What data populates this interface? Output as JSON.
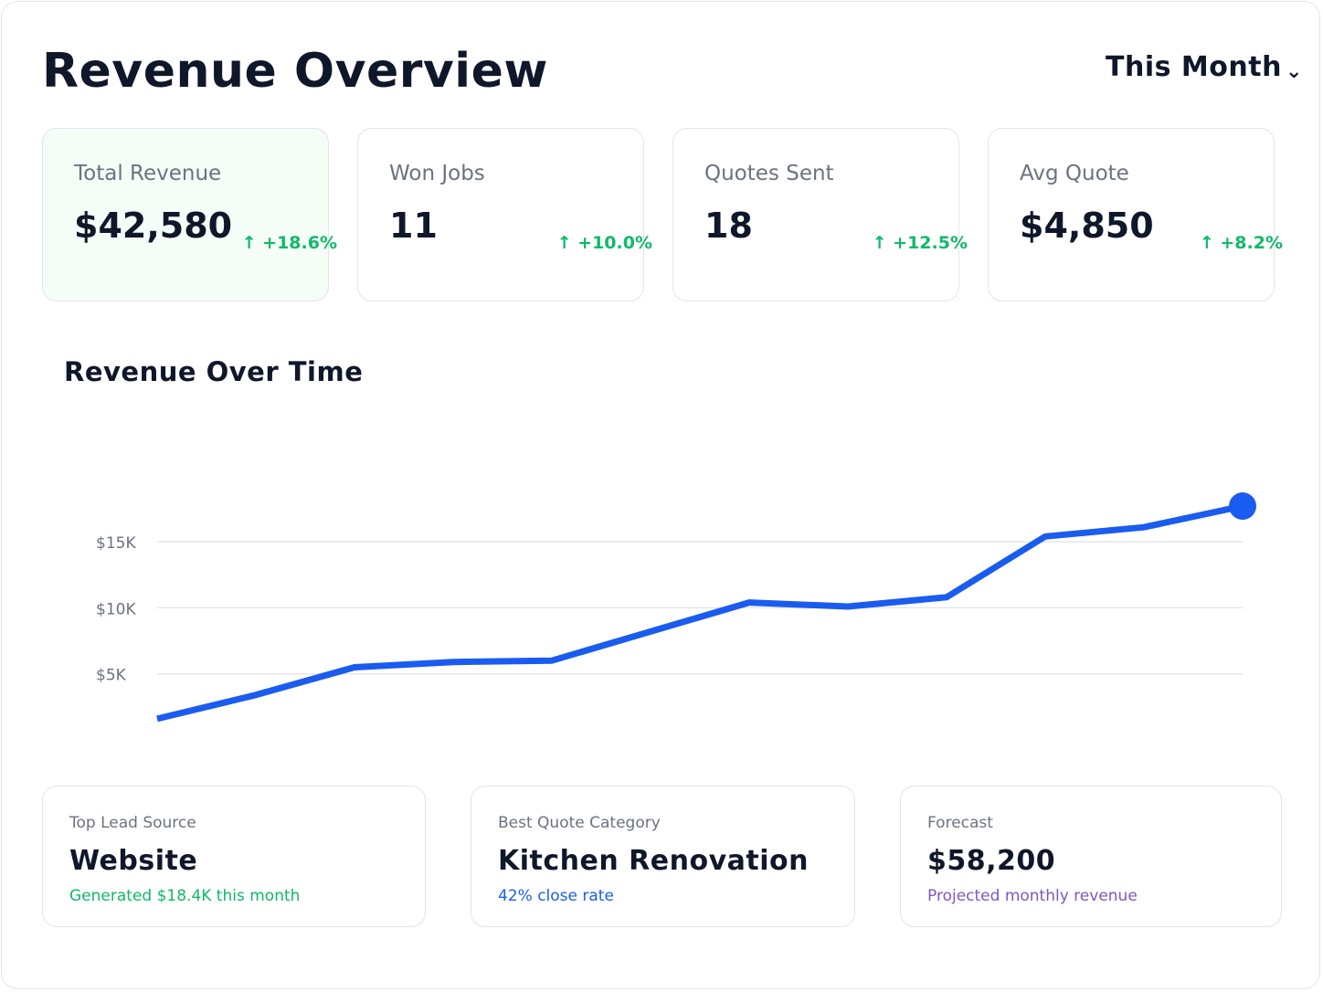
{
  "header": {
    "title": "Revenue Overview",
    "period_label": "This Month",
    "period_icon": "chevron-down-icon"
  },
  "kpis": [
    {
      "label": "Total Revenue",
      "value": "$42,580",
      "delta": "↑ +18.6%",
      "highlight": true
    },
    {
      "label": "Won Jobs",
      "value": "11",
      "delta": "↑ +10.0%",
      "highlight": false
    },
    {
      "label": "Quotes Sent",
      "value": "18",
      "delta": "↑ +12.5%",
      "highlight": false
    },
    {
      "label": "Avg Quote",
      "value": "$4,850",
      "delta": "↑ +8.2%",
      "highlight": false
    }
  ],
  "colors": {
    "positive": "#10b96a",
    "line": "#1a5cf0",
    "grid": "#e5e7eb",
    "accent_blue": "#1a5cf0",
    "accent_purple": "#7e57c2",
    "accent_green": "#10b96a"
  },
  "chart_data": {
    "type": "line",
    "title": "Revenue Over Time",
    "xlabel": "",
    "ylabel": "",
    "y_tick_labels": [
      "$5K",
      "$10K",
      "$15K"
    ],
    "y_ticks": [
      5000,
      10000,
      15000
    ],
    "grid": true,
    "legend": "none",
    "series": [
      {
        "values": [
          1600,
          3400,
          5500,
          5900,
          6000,
          8200,
          10400,
          10100,
          10800,
          15400,
          16100,
          17700
        ]
      }
    ],
    "end_marker": true
  },
  "summary": [
    {
      "label": "Top Lead Source",
      "value": "Website",
      "sub": "Generated $18.4K this month",
      "sub_color": "#10b96a"
    },
    {
      "label": "Best Quote Category",
      "value": "Kitchen Renovation",
      "sub": "42% close rate",
      "sub_color": "#1a5cf0"
    },
    {
      "label": "Forecast",
      "value": "$58,200",
      "sub": "Projected monthly revenue",
      "sub_color": "#7e57c2"
    }
  ]
}
